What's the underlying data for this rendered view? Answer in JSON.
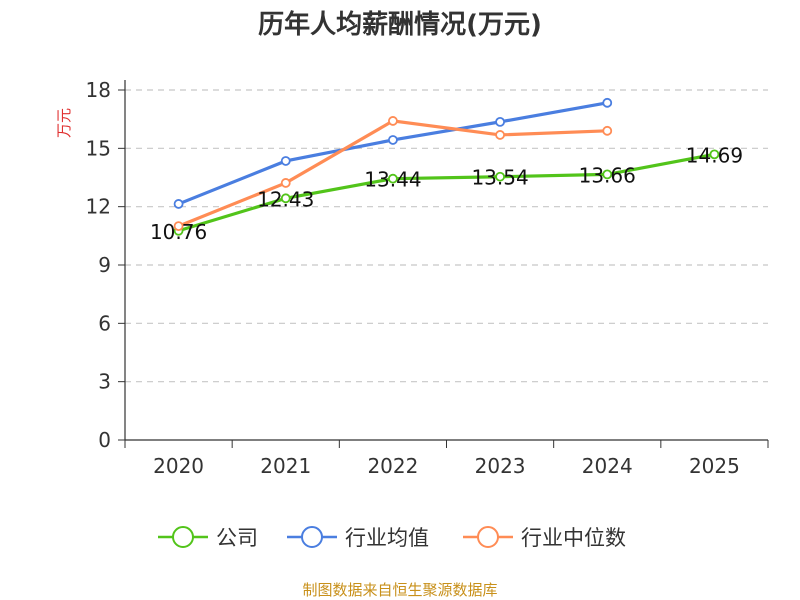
{
  "chart_data": {
    "type": "line",
    "title": "历年人均薪酬情况(万元)",
    "ylabel": "万元",
    "xlabel": "",
    "categories": [
      "2020",
      "2021",
      "2022",
      "2023",
      "2024",
      "2025"
    ],
    "ylim": [
      0,
      18
    ],
    "yticks": [
      0,
      3,
      6,
      9,
      12,
      15,
      18
    ],
    "grid": true,
    "legend_position": "bottom",
    "series": [
      {
        "name": "公司",
        "color": "#52c41a",
        "values": [
          10.76,
          12.43,
          13.44,
          13.54,
          13.66,
          14.69
        ],
        "labels": [
          "10.76",
          "12.43",
          "13.44",
          "13.54",
          "13.66",
          "14.69"
        ]
      },
      {
        "name": "行业均值",
        "color": "#4a7ee0",
        "values": [
          12.14,
          14.35,
          15.43,
          16.36,
          17.34,
          null
        ]
      },
      {
        "name": "行业中位数",
        "color": "#ff8c55",
        "values": [
          11.0,
          13.22,
          16.41,
          15.69,
          15.9,
          null
        ]
      }
    ],
    "source": "制图数据来自恒生聚源数据库"
  }
}
